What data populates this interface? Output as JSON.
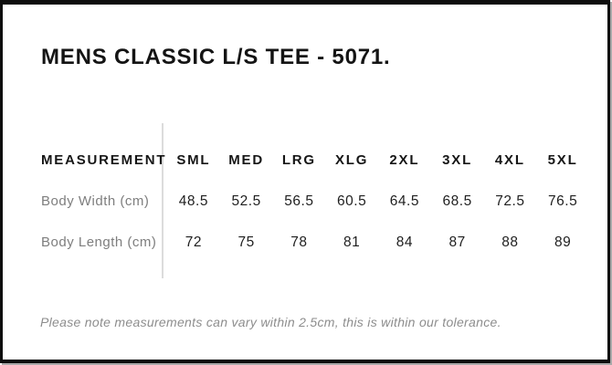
{
  "panel": {
    "title": "MENS CLASSIC L/S TEE - 5071.",
    "note": "Please note measurements can vary within 2.5cm, this is within our tolerance."
  },
  "table": {
    "header_label": "MEASUREMENT",
    "sizes": [
      "SML",
      "MED",
      "LRG",
      "XLG",
      "2XL",
      "3XL",
      "4XL",
      "5XL"
    ],
    "rows": [
      {
        "label": "Body Width (cm)",
        "values": [
          "48.5",
          "52.5",
          "56.5",
          "60.5",
          "64.5",
          "68.5",
          "72.5",
          "76.5"
        ]
      },
      {
        "label": "Body Length (cm)",
        "values": [
          "72",
          "75",
          "78",
          "81",
          "84",
          "87",
          "88",
          "89"
        ]
      }
    ]
  },
  "colors": {
    "frame_border": "#0d0d0d",
    "title_text": "#141414",
    "header_text": "#161616",
    "value_text": "#1f1f1f",
    "label_gray": "#7e7e7e",
    "note_gray": "#8d8d8d",
    "divider_gray": "#dcdcdc",
    "outer_edge_gray": "#a9a9a9"
  }
}
